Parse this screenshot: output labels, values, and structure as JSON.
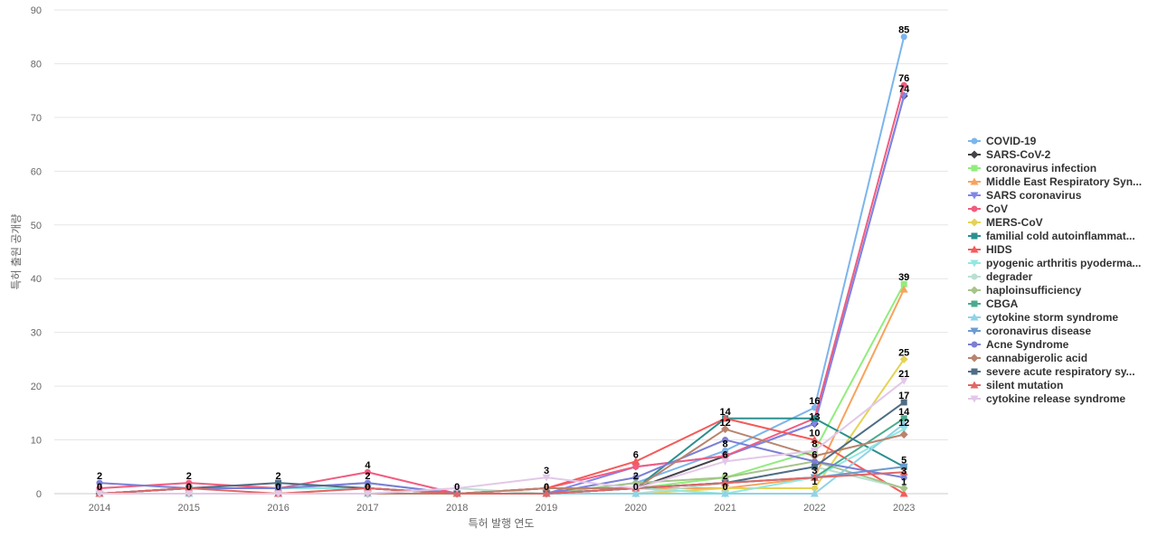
{
  "chart_data": {
    "type": "line",
    "xlabel": "특허 발행 연도",
    "ylabel": "특허 출원 공개량",
    "x": [
      "2014",
      "2015",
      "2016",
      "2017",
      "2018",
      "2019",
      "2020",
      "2021",
      "2022",
      "2023"
    ],
    "y_ticks": [
      0,
      10,
      20,
      30,
      40,
      50,
      60,
      70,
      80,
      90
    ],
    "ylim": [
      0,
      90
    ],
    "grid": "horizontal",
    "legend_position": "right",
    "series": [
      {
        "name": "COVID-19",
        "color": "#7cb5ec",
        "marker": "circle",
        "values": [
          0,
          1,
          1,
          2,
          0,
          0,
          2,
          8,
          16,
          85
        ]
      },
      {
        "name": "SARS-CoV-2",
        "color": "#434348",
        "marker": "diamond",
        "values": [
          0,
          1,
          1,
          1,
          0,
          1,
          1,
          7,
          13,
          74
        ]
      },
      {
        "name": "coronavirus infection",
        "color": "#90ed7d",
        "marker": "square",
        "values": [
          0,
          0,
          0,
          0,
          0,
          0,
          1,
          3,
          8,
          39
        ]
      },
      {
        "name": "Middle East Respiratory Syn...",
        "color": "#f7a35c",
        "marker": "triangle",
        "values": [
          0,
          0,
          0,
          1,
          0,
          0,
          1,
          1,
          3,
          38
        ]
      },
      {
        "name": "SARS coronavirus",
        "color": "#8085e9",
        "marker": "triangle-down",
        "values": [
          0,
          1,
          1,
          1,
          0,
          0,
          5,
          7,
          13,
          74
        ]
      },
      {
        "name": "CoV",
        "color": "#f15c80",
        "marker": "circle",
        "values": [
          1,
          2,
          1,
          4,
          0,
          1,
          5,
          7,
          14,
          76
        ]
      },
      {
        "name": "MERS-CoV",
        "color": "#e4d354",
        "marker": "diamond",
        "values": [
          0,
          0,
          0,
          0,
          0,
          0,
          0,
          1,
          1,
          25
        ]
      },
      {
        "name": "familial cold autoinflammat...",
        "color": "#2b908f",
        "marker": "square",
        "values": [
          0,
          1,
          1,
          1,
          0,
          0,
          1,
          14,
          14,
          5
        ]
      },
      {
        "name": "HIDS",
        "color": "#f45b5b",
        "marker": "triangle",
        "values": [
          0,
          1,
          1,
          1,
          0,
          1,
          6,
          14,
          10,
          0
        ]
      },
      {
        "name": "pyogenic arthritis pyoderma...",
        "color": "#91e8e1",
        "marker": "triangle-down",
        "values": [
          0,
          1,
          1,
          1,
          0,
          0,
          1,
          0,
          3,
          12
        ]
      },
      {
        "name": "degrader",
        "color": "#b8e0d2",
        "marker": "circle",
        "values": [
          0,
          0,
          0,
          0,
          1,
          0,
          0,
          2,
          5,
          1
        ]
      },
      {
        "name": "haploinsufficiency",
        "color": "#a6c48a",
        "marker": "diamond",
        "values": [
          0,
          0,
          0,
          0,
          0,
          0,
          2,
          3,
          6,
          1
        ]
      },
      {
        "name": "CBGA",
        "color": "#4bab8d",
        "marker": "square",
        "values": [
          0,
          0,
          0,
          0,
          0,
          0,
          1,
          2,
          3,
          14
        ]
      },
      {
        "name": "cytokine storm syndrome",
        "color": "#8fd3e8",
        "marker": "triangle",
        "values": [
          0,
          0,
          0,
          0,
          0,
          0,
          0,
          0,
          0,
          13
        ]
      },
      {
        "name": "coronavirus disease",
        "color": "#6b9bd1",
        "marker": "triangle-down",
        "values": [
          0,
          0,
          0,
          0,
          0,
          0,
          1,
          2,
          3,
          5
        ]
      },
      {
        "name": "Acne Syndrome",
        "color": "#7b7fd4",
        "marker": "circle",
        "values": [
          2,
          1,
          1,
          2,
          0,
          0,
          3,
          10,
          6,
          3
        ]
      },
      {
        "name": "cannabigerolic acid",
        "color": "#b8846e",
        "marker": "diamond",
        "values": [
          0,
          0,
          0,
          0,
          0,
          1,
          1,
          12,
          7,
          11
        ]
      },
      {
        "name": "severe acute respiratory sy...",
        "color": "#4f6d85",
        "marker": "square",
        "values": [
          0,
          1,
          2,
          1,
          0,
          0,
          1,
          2,
          5,
          17
        ]
      },
      {
        "name": "silent mutation",
        "color": "#e06666",
        "marker": "triangle",
        "values": [
          0,
          1,
          0,
          1,
          0,
          0,
          1,
          2,
          3,
          4
        ]
      },
      {
        "name": "cytokine release syndrome",
        "color": "#e2c8e8",
        "marker": "triangle-down",
        "values": [
          0,
          0,
          0,
          0,
          1,
          3,
          1,
          6,
          8,
          21
        ]
      }
    ],
    "data_labels": [
      {
        "x": "2014",
        "values": [
          "2",
          "0"
        ]
      },
      {
        "x": "2015",
        "values": [
          "2",
          "0"
        ]
      },
      {
        "x": "2016",
        "values": [
          "2",
          "0"
        ]
      },
      {
        "x": "2017",
        "values": [
          "4",
          "2",
          "0"
        ]
      },
      {
        "x": "2018",
        "values": [
          "0"
        ]
      },
      {
        "x": "2019",
        "values": [
          "3",
          "0"
        ]
      },
      {
        "x": "2020",
        "values": [
          "6",
          "2",
          "0"
        ]
      },
      {
        "x": "2021",
        "values": [
          "14",
          "12",
          "8",
          "6",
          "2",
          "0"
        ]
      },
      {
        "x": "2022",
        "values": [
          "16",
          "13",
          "10",
          "8",
          "6",
          "3",
          "1"
        ]
      },
      {
        "x": "2023",
        "values": [
          "85",
          "76",
          "74",
          "39",
          "25",
          "21",
          "17",
          "14",
          "12",
          "5",
          "3",
          "1"
        ]
      }
    ]
  }
}
